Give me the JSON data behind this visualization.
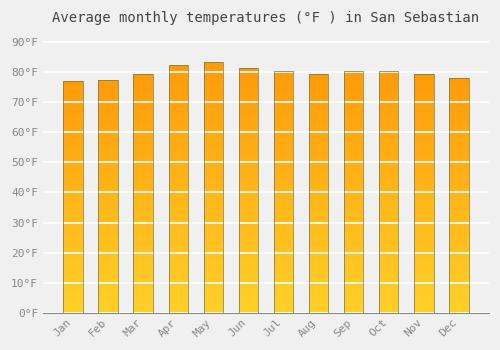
{
  "title": "Average monthly temperatures (°F ) in San Sebastian",
  "months": [
    "Jan",
    "Feb",
    "Mar",
    "Apr",
    "May",
    "Jun",
    "Jul",
    "Aug",
    "Sep",
    "Oct",
    "Nov",
    "Dec"
  ],
  "values": [
    77.0,
    77.5,
    79.5,
    82.5,
    83.5,
    81.5,
    80.5,
    79.5,
    80.5,
    80.5,
    79.5,
    78.0
  ],
  "bar_color_top": "#FFA500",
  "bar_color_bottom": "#FFD040",
  "yticks": [
    0,
    10,
    20,
    30,
    40,
    50,
    60,
    70,
    80,
    90
  ],
  "ytick_labels": [
    "0°F",
    "10°F",
    "20°F",
    "30°F",
    "40°F",
    "50°F",
    "60°F",
    "70°F",
    "80°F",
    "90°F"
  ],
  "ylim": [
    0,
    93
  ],
  "background_color": "#f0f0f0",
  "grid_color": "#ffffff",
  "bar_edge_color": "#888844",
  "title_fontsize": 10,
  "tick_fontsize": 8,
  "font_family": "monospace",
  "bar_width": 0.55,
  "figsize": [
    5.0,
    3.5
  ],
  "dpi": 100
}
